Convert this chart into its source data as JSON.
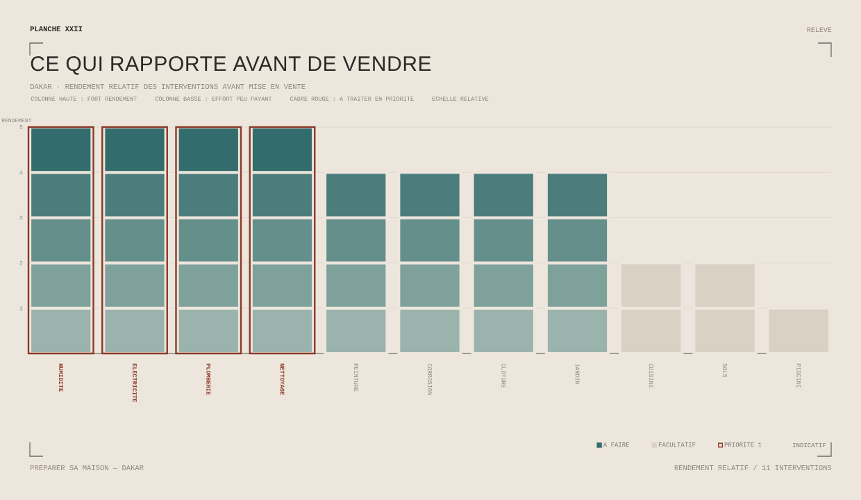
{
  "chart_data": {
    "type": "bar",
    "title": "CE QUI RAPPORTE AVANT DE VENDRE",
    "subtitle": "DAKAR · RENDEMENT RELATIF DES INTERVENTIONS AVANT MISE EN VENTE",
    "ylabel": "RENDEMENT",
    "categories": [
      "HUMIDITE",
      "ELECTRICITE",
      "PLOMBERIE",
      "NETTOYAGE",
      "PEINTURE",
      "CORROSION",
      "CLOTURE",
      "JARDIN",
      "CUISINE",
      "SOLS",
      "PISCINE"
    ],
    "series": [
      {
        "color": "#9bb3ad",
        "values": [
          1,
          1,
          1,
          1,
          1,
          1,
          1,
          1,
          null,
          null,
          null
        ],
        "base": [
          0,
          0,
          0,
          0,
          0,
          0,
          0,
          0,
          null,
          null,
          null
        ]
      },
      {
        "color": "#7fa19c",
        "values": [
          1,
          1,
          1,
          1,
          1,
          1,
          1,
          1,
          null,
          null,
          null
        ],
        "base": [
          1,
          1,
          1,
          1,
          1,
          1,
          1,
          1,
          null,
          null,
          null
        ]
      },
      {
        "color": "#648f8b",
        "values": [
          1,
          1,
          1,
          1,
          1,
          1,
          1,
          1,
          null,
          null,
          null
        ],
        "base": [
          2,
          2,
          2,
          2,
          2,
          2,
          2,
          2,
          null,
          null,
          null
        ]
      },
      {
        "color": "#4a7d7c",
        "values": [
          1,
          1,
          1,
          1,
          1,
          1,
          1,
          1,
          null,
          null,
          null
        ],
        "base": [
          3,
          3,
          3,
          3,
          3,
          3,
          3,
          3,
          null,
          null,
          null
        ]
      },
      {
        "name": "A FAIRE",
        "color": "#336c6d",
        "values": [
          1,
          1,
          1,
          1,
          null,
          null,
          null,
          null,
          null,
          null,
          null
        ],
        "base": [
          4,
          4,
          4,
          4,
          null,
          null,
          null,
          null,
          null,
          null,
          null
        ]
      },
      {
        "name": "FACULTATIF",
        "color": "#d9d1c4",
        "values": [
          null,
          null,
          null,
          null,
          null,
          null,
          null,
          null,
          1,
          1,
          1
        ],
        "base": [
          null,
          null,
          null,
          null,
          null,
          null,
          null,
          null,
          0,
          0,
          0
        ]
      },
      {
        "color": "#d9d1c4",
        "values": [
          null,
          null,
          null,
          null,
          null,
          null,
          null,
          null,
          1,
          1,
          null
        ],
        "base": [
          null,
          null,
          null,
          null,
          null,
          null,
          null,
          null,
          1,
          1,
          null
        ]
      },
      {
        "name": "PRIORITE 1",
        "type": "bar",
        "color": "#8b3a2a",
        "values": [
          5,
          5,
          5,
          5,
          null,
          null,
          null,
          null,
          null,
          null,
          null
        ]
      }
    ],
    "ylim": [
      0,
      5
    ],
    "yticks": [
      1,
      2,
      3,
      4,
      5
    ],
    "grid": "y",
    "legend": "bottom right",
    "annotations": [
      "PLANCHE XXII",
      "RELEVE",
      "COLONNE HAUTE : FORT RENDEMENT",
      "COLONNE BASSE : EFFORT PEU PAYANT",
      "CADRE ROUGE : A TRAITER EN PRIORITE",
      "ECHELLE RELATIVE",
      "INDICATIF",
      "PREPARER SA MAISON — DAKAR",
      "RENDEMENT RELATIF / 11 INTERVENTIONS"
    ]
  }
}
